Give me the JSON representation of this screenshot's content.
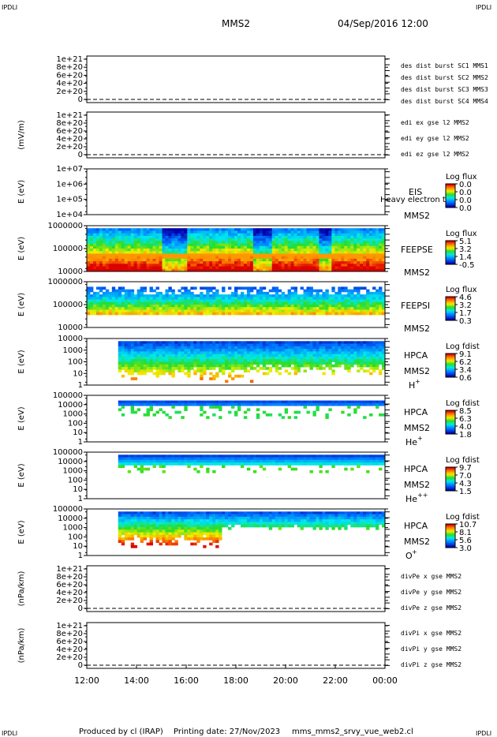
{
  "corner_label": "IPDLI",
  "header": {
    "spacecraft": "MMS2",
    "date": "04/Sep/2016 12:00"
  },
  "footer": {
    "produced_by": "Produced by cl (IRAP)",
    "printing_date": "Printing date: 27/Nov/2023",
    "filename": "mms_mms2_srvy_vue_web2.cl"
  },
  "colors": {
    "red": "#e00000",
    "magenta": "#e000e0",
    "green": "#00c000",
    "blue": "#0000c0"
  },
  "chart_data": {
    "type": "heatmap",
    "x_ticks": [
      "12:00",
      "14:00",
      "16:00",
      "18:00",
      "20:00",
      "22:00",
      "00:00"
    ],
    "panels": [
      {
        "id": "des-dist",
        "type": "line",
        "ylabel": "",
        "yticks": [
          "1e+21",
          "8e+20",
          "6e+20",
          "4e+20",
          "2e+20",
          "0"
        ],
        "legend": [
          {
            "text": "des dist burst SC1 MMS1",
            "color": "blue"
          },
          {
            "text": "des dist burst SC2 MMS2",
            "color": "magenta"
          },
          {
            "text": "des dist burst SC3 MMS3",
            "color": "red"
          },
          {
            "text": "des dist burst SC4 MMS4",
            "color": "green"
          }
        ]
      },
      {
        "id": "edi",
        "type": "line",
        "ylabel": "(mV/m)",
        "yticks": [
          "1e+21",
          "8e+20",
          "6e+20",
          "4e+20",
          "2e+20",
          "0"
        ],
        "legend": [
          {
            "text": "edi ex gse l2 MMS2",
            "color": "red"
          },
          {
            "text": "edi ey gse l2 MMS2",
            "color": "green"
          },
          {
            "text": "edi ez gse l2 MMS2",
            "color": "blue"
          }
        ]
      },
      {
        "id": "eis",
        "type": "heatmap",
        "ylabel": "E (eV)",
        "yticks": [
          "1e+07",
          "1e+06",
          "1e+05",
          "1e+04"
        ],
        "instrument": "EIS",
        "sub": "Heavy electron to",
        "sc": "MMS2",
        "cbar_title": "Log flux",
        "cbar_ticks": [
          "0.0",
          "0.0",
          "0.0",
          "0.0"
        ],
        "data": "none"
      },
      {
        "id": "feepse",
        "type": "heatmap",
        "ylabel": "E (eV)",
        "yticks": [
          "1000000",
          "100000",
          "10000"
        ],
        "instrument": "FEEPSE",
        "sc": "MMS2",
        "cbar_title": "Log flux",
        "cbar_ticks": [
          "5.1",
          "3.2",
          "1.4",
          "-0.5"
        ]
      },
      {
        "id": "feepsi",
        "type": "heatmap",
        "ylabel": "E (eV)",
        "yticks": [
          "1000000",
          "100000",
          "10000"
        ],
        "instrument": "FEEPSI",
        "sc": "MMS2",
        "cbar_title": "Log flux",
        "cbar_ticks": [
          "4.6",
          "3.2",
          "1.7",
          "0.3"
        ]
      },
      {
        "id": "hpca-h",
        "type": "heatmap",
        "ylabel": "E (eV)",
        "yticks": [
          "10000",
          "1000",
          "100",
          "10",
          "1"
        ],
        "instrument": "HPCA",
        "sc": "MMS2",
        "species": "H",
        "charge": "+",
        "cbar_title": "Log fdist",
        "cbar_ticks": [
          "9.1",
          "6.2",
          "3.4",
          "0.6"
        ]
      },
      {
        "id": "hpca-he",
        "type": "heatmap",
        "ylabel": "E (eV)",
        "yticks": [
          "100000",
          "10000",
          "1000",
          "100",
          "10",
          "1"
        ],
        "instrument": "HPCA",
        "sc": "MMS2",
        "species": "He",
        "charge": "+",
        "cbar_title": "Log fdist",
        "cbar_ticks": [
          "8.5",
          "6.3",
          "4.0",
          "1.8"
        ]
      },
      {
        "id": "hpca-he2",
        "type": "heatmap",
        "ylabel": "E (eV)",
        "yticks": [
          "100000",
          "10000",
          "1000",
          "100",
          "10",
          "1"
        ],
        "instrument": "HPCA",
        "sc": "MMS2",
        "species": "He",
        "charge": "++",
        "cbar_title": "Log fdist",
        "cbar_ticks": [
          "9.7",
          "7.0",
          "4.3",
          "1.5"
        ]
      },
      {
        "id": "hpca-o",
        "type": "heatmap",
        "ylabel": "E (eV)",
        "yticks": [
          "100000",
          "10000",
          "1000",
          "100",
          "10",
          "1"
        ],
        "instrument": "HPCA",
        "sc": "MMS2",
        "species": "O",
        "charge": "+",
        "cbar_title": "Log fdist",
        "cbar_ticks": [
          "10.7",
          "8.1",
          "5.6",
          "3.0"
        ]
      },
      {
        "id": "divpe",
        "type": "line",
        "ylabel": "(nPa/km)",
        "yticks": [
          "1e+21",
          "8e+20",
          "6e+20",
          "4e+20",
          "2e+20",
          "0"
        ],
        "legend": [
          {
            "text": "divPe x gse MMS2",
            "color": "red"
          },
          {
            "text": "divPe y gse MMS2",
            "color": "green"
          },
          {
            "text": "divPe z gse MMS2",
            "color": "blue"
          }
        ]
      },
      {
        "id": "divpi",
        "type": "line",
        "ylabel": "(nPa/km)",
        "yticks": [
          "1e+21",
          "8e+20",
          "6e+20",
          "4e+20",
          "2e+20",
          "0"
        ],
        "legend": [
          {
            "text": "divPi x gse MMS2",
            "color": "red"
          },
          {
            "text": "divPi y gse MMS2",
            "color": "green"
          },
          {
            "text": "divPi z gse MMS2",
            "color": "blue"
          }
        ]
      }
    ]
  }
}
